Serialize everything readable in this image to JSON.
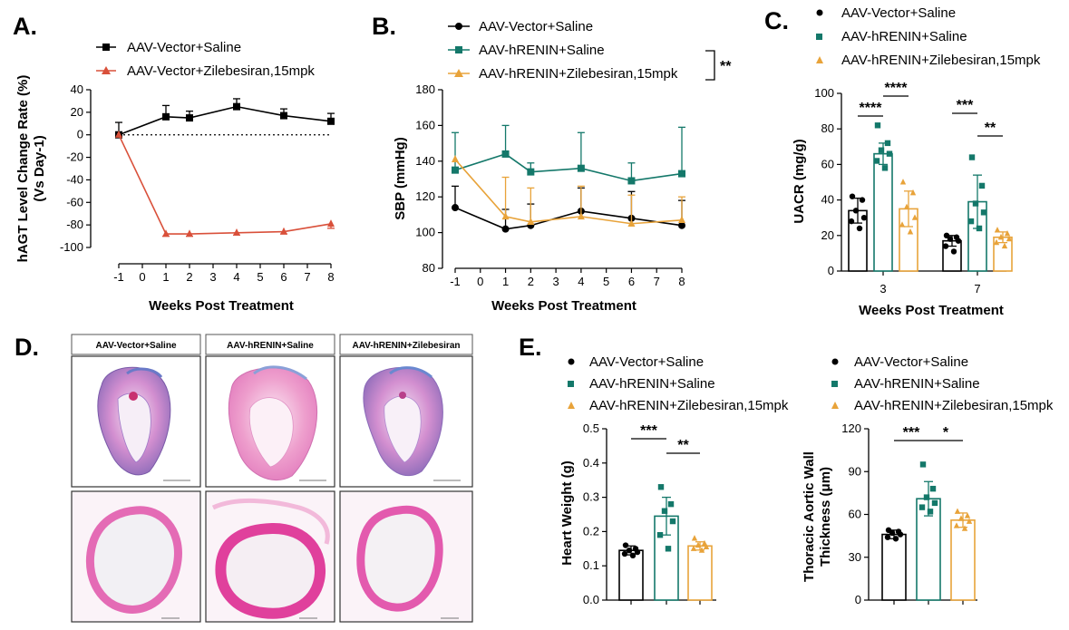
{
  "panels": {
    "A": "A.",
    "B": "B.",
    "C": "C.",
    "D": "D.",
    "E": "E."
  },
  "colors": {
    "vector": "#000000",
    "renin": "#14786a",
    "zile_orange": "#e8a33a",
    "zile_red": "#d9503a",
    "he_pink": "#e46bb5",
    "he_purple": "#8a6ab8"
  },
  "chart_data": [
    {
      "id": "A",
      "type": "line",
      "xlabel": "Weeks Post Treatment",
      "ylabel": [
        "hAGT Level Change Rate (%)",
        "(Vs Day-1)"
      ],
      "x_ticks": [
        -1,
        0,
        1,
        2,
        3,
        4,
        5,
        6,
        7,
        8
      ],
      "y_ticks": [
        -100,
        -80,
        -60,
        -40,
        -20,
        0,
        20,
        40
      ],
      "ylim": [
        -100,
        40
      ],
      "reference_line": 0,
      "series": [
        {
          "name": "AAV-Vector+Saline",
          "color": "#000000",
          "marker": "square",
          "x": [
            -1,
            1,
            2,
            4,
            6,
            8
          ],
          "y": [
            0,
            16,
            15,
            25,
            17,
            12
          ],
          "err": [
            11,
            10,
            6,
            7,
            6,
            7
          ]
        },
        {
          "name": "AAV-Vector+Zilebesiran,15mpk",
          "color": "#d9503a",
          "marker": "triangle",
          "x": [
            -1,
            1,
            2,
            4,
            6,
            8
          ],
          "y": [
            0,
            -88,
            -88,
            -87,
            -86,
            -79
          ],
          "err": [
            0,
            2,
            2,
            2,
            2,
            4
          ]
        }
      ]
    },
    {
      "id": "B",
      "type": "line",
      "xlabel": "Weeks Post Treatment",
      "ylabel": "SBP (mmHg)",
      "x_ticks": [
        -1,
        0,
        1,
        2,
        3,
        4,
        5,
        6,
        7,
        8
      ],
      "y_ticks": [
        80,
        100,
        120,
        140,
        160,
        180
      ],
      "ylim": [
        80,
        180
      ],
      "series": [
        {
          "name": "AAV-Vector+Saline",
          "color": "#000000",
          "marker": "circle",
          "x": [
            -1,
            1,
            2,
            4,
            6,
            8
          ],
          "y": [
            114,
            102,
            104,
            112,
            108,
            104
          ],
          "err": [
            12,
            11,
            12,
            13,
            15,
            14
          ]
        },
        {
          "name": "AAV-hRENIN+Saline",
          "color": "#14786a",
          "marker": "square",
          "x": [
            -1,
            1,
            2,
            4,
            6,
            8
          ],
          "y": [
            135,
            144,
            134,
            136,
            129,
            133
          ],
          "err": [
            21,
            16,
            5,
            20,
            10,
            26
          ]
        },
        {
          "name": "AAV-hRENIN+Zilebesiran,15mpk",
          "color": "#e8a33a",
          "marker": "triangle",
          "x": [
            -1,
            1,
            2,
            4,
            6,
            8
          ],
          "y": [
            141,
            109,
            106,
            109,
            105,
            107
          ],
          "err": [
            0,
            22,
            19,
            17,
            16,
            13
          ]
        }
      ],
      "significance": "**"
    },
    {
      "id": "C",
      "type": "bar",
      "xlabel": "Weeks Post Treatment",
      "ylabel": "UACR (mg/g)",
      "categories": [
        "3",
        "7"
      ],
      "y_ticks": [
        0,
        20,
        40,
        60,
        80,
        100
      ],
      "ylim": [
        0,
        100
      ],
      "series": [
        {
          "name": "AAV-Vector+Saline",
          "color": "#000000",
          "marker": "circle",
          "values": [
            34,
            17
          ],
          "err": [
            7,
            3
          ],
          "points": [
            [
              42,
              40,
              34,
              30,
              28,
              24
            ],
            [
              20,
              19,
              18,
              17,
              14,
              11
            ]
          ]
        },
        {
          "name": "AAV-hRENIN+Saline",
          "color": "#14786a",
          "marker": "square",
          "values": [
            66,
            39
          ],
          "err": [
            6,
            15
          ],
          "points": [
            [
              82,
              72,
              68,
              66,
              62,
              58
            ],
            [
              64,
              48,
              38,
              33,
              28,
              24
            ]
          ]
        },
        {
          "name": "AAV-hRENIN+Zilebesiran,15mpk",
          "color": "#e8a33a",
          "marker": "triangle",
          "values": [
            35,
            19
          ],
          "err": [
            10,
            3
          ],
          "points": [
            [
              50,
              44,
              36,
              30,
              26,
              22
            ],
            [
              23,
              21,
              19,
              18,
              16,
              14
            ]
          ]
        }
      ],
      "significance": [
        "****",
        "****",
        "***",
        "**"
      ]
    },
    {
      "id": "E1",
      "type": "bar",
      "ylabel": "Heart Weight (g)",
      "y_ticks": [
        0.0,
        0.1,
        0.2,
        0.3,
        0.4,
        0.5
      ],
      "ylim": [
        0,
        0.5
      ],
      "series": [
        {
          "name": "AAV-Vector+Saline",
          "color": "#000000",
          "marker": "circle",
          "value": 0.145,
          "err": 0.013,
          "points": [
            0.16,
            0.15,
            0.145,
            0.14,
            0.135,
            0.13
          ]
        },
        {
          "name": "AAV-hRENIN+Saline",
          "color": "#14786a",
          "marker": "square",
          "value": 0.245,
          "err": 0.055,
          "points": [
            0.33,
            0.28,
            0.26,
            0.23,
            0.19,
            0.15
          ]
        },
        {
          "name": "AAV-hRENIN+Zilebesiran,15mpk",
          "color": "#e8a33a",
          "marker": "triangle",
          "value": 0.158,
          "err": 0.012,
          "points": [
            0.18,
            0.165,
            0.16,
            0.155,
            0.15,
            0.145
          ]
        }
      ],
      "significance": [
        "***",
        "**"
      ]
    },
    {
      "id": "E2",
      "type": "bar",
      "ylabel": [
        "Thoracic Aortic Wall",
        "Thickness (μm)"
      ],
      "y_ticks": [
        0,
        30,
        60,
        90,
        120
      ],
      "ylim": [
        0,
        120
      ],
      "series": [
        {
          "name": "AAV-Vector+Saline",
          "color": "#000000",
          "marker": "circle",
          "value": 46,
          "err": 3,
          "points": [
            49,
            48,
            47,
            46,
            44,
            43
          ]
        },
        {
          "name": "AAV-hRENIN+Saline",
          "color": "#14786a",
          "marker": "square",
          "value": 71,
          "err": 12,
          "points": [
            95,
            78,
            72,
            68,
            65,
            62
          ]
        },
        {
          "name": "AAV-hRENIN+Zilebesiran,15mpk",
          "color": "#e8a33a",
          "marker": "triangle",
          "value": 56,
          "err": 5,
          "points": [
            62,
            59,
            57,
            55,
            52,
            50
          ]
        }
      ],
      "significance": [
        "***",
        "*"
      ]
    }
  ],
  "histology": {
    "headers": [
      "AAV-Vector+Saline",
      "AAV-hRENIN+Saline",
      "AAV-hRENIN+Zilebesiran"
    ]
  }
}
